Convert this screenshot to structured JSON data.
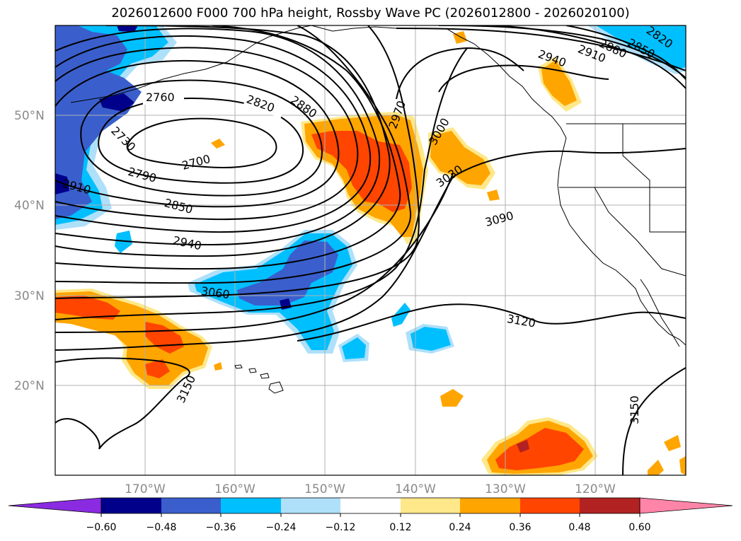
{
  "title": "2026012600 F000 700 hPa height, Rossby Wave PC (2026012800 - 2026020100)",
  "lat_labels": [
    "50°N",
    "40°N",
    "30°N",
    "20°N"
  ],
  "lon_labels": [
    "170°W",
    "160°W",
    "150°W",
    "140°W",
    "130°W",
    "120°W"
  ],
  "contour_labels": [
    "2760",
    "2820",
    "2880",
    "2970",
    "3000",
    "3030",
    "3090",
    "2940",
    "2910",
    "2880",
    "2850",
    "2820",
    "2700",
    "2730",
    "2790",
    "2850",
    "2910",
    "2940",
    "3060",
    "3120",
    "3150",
    "3150"
  ],
  "colorbar": {
    "ticks": [
      "−0.60",
      "−0.48",
      "−0.36",
      "−0.24",
      "−0.12",
      "0.12",
      "0.24",
      "0.36",
      "0.48",
      "0.60"
    ],
    "colors": [
      "#8a2be2",
      "#00008b",
      "#3a5fcd",
      "#00bfff",
      "#afe0fa",
      "#ffffff",
      "#ffe88a",
      "#ffa500",
      "#ff4500",
      "#b22222",
      "#ff85a8"
    ]
  },
  "colors": {
    "deep_blue": "#00008b",
    "mid_blue": "#3a5fcd",
    "sky_blue": "#00bfff",
    "light_blue": "#afe0fa",
    "light_yellow": "#ffe88a",
    "orange": "#ffa500",
    "red_orange": "#ff4500",
    "dark_red": "#b22222"
  }
}
